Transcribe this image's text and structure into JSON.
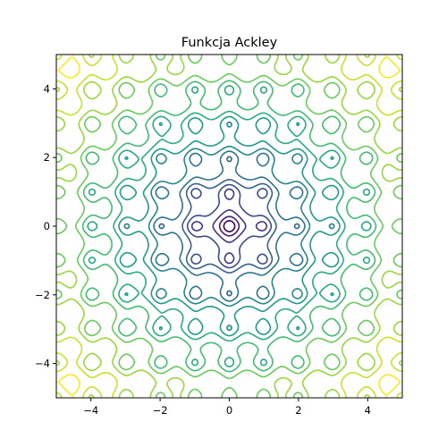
{
  "chart_data": {
    "type": "contour",
    "title": "Funkcja Ackley",
    "xlabel": "",
    "ylabel": "",
    "xlim": [
      -5,
      5
    ],
    "ylim": [
      -5,
      5
    ],
    "xticks": [
      -4,
      -2,
      0,
      2,
      4
    ],
    "yticks": [
      -4,
      -2,
      0,
      2,
      4
    ],
    "xtick_labels": [
      "−4",
      "−2",
      "0",
      "2",
      "4"
    ],
    "ytick_labels": [
      "−4",
      "−2",
      "0",
      "2",
      "4"
    ],
    "function": "ackley",
    "levels": [
      1,
      2,
      3,
      4,
      5,
      6,
      7,
      8,
      9,
      10,
      11,
      12,
      13,
      14
    ],
    "colormap": "viridis",
    "grid": false,
    "legend": "none"
  }
}
